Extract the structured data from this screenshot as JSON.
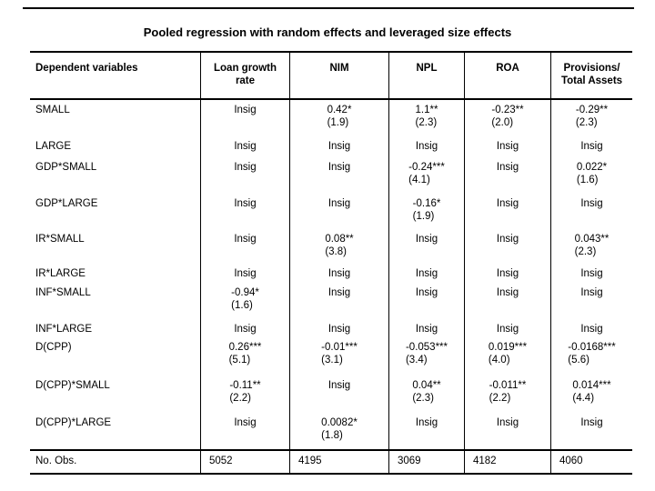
{
  "slide": {
    "title": "Pooled regression with random effects and leveraged size effects"
  },
  "table": {
    "headers": [
      "Dependent variables",
      "Loan growth rate",
      "NIM",
      "NPL",
      "ROA",
      "Provisions/ Total Assets"
    ],
    "rows": [
      {
        "label": "SMALL",
        "cells": [
          {
            "v": "Insig",
            "t": ""
          },
          {
            "v": "0.42*",
            "t": "(1.9)"
          },
          {
            "v": "1.1**",
            "t": "(2.3)"
          },
          {
            "v": "-0.23**",
            "t": "(2.0)"
          },
          {
            "v": "-0.29**",
            "t": "(2.3)"
          }
        ]
      },
      {
        "label": "LARGE",
        "cells": [
          {
            "v": "Insig",
            "t": ""
          },
          {
            "v": "Insig",
            "t": ""
          },
          {
            "v": "Insig",
            "t": ""
          },
          {
            "v": "Insig",
            "t": ""
          },
          {
            "v": "Insig",
            "t": ""
          }
        ]
      },
      {
        "label": "GDP*SMALL",
        "cells": [
          {
            "v": "Insig",
            "t": ""
          },
          {
            "v": "Insig",
            "t": ""
          },
          {
            "v": "-0.24***",
            "t": "(4.1)"
          },
          {
            "v": "Insig",
            "t": ""
          },
          {
            "v": "0.022*",
            "t": "(1.6)"
          }
        ]
      },
      {
        "label": "GDP*LARGE",
        "cells": [
          {
            "v": "Insig",
            "t": ""
          },
          {
            "v": "Insig",
            "t": ""
          },
          {
            "v": "-0.16*",
            "t": "(1.9)"
          },
          {
            "v": "Insig",
            "t": ""
          },
          {
            "v": "Insig",
            "t": ""
          }
        ]
      },
      {
        "label": "IR*SMALL",
        "cells": [
          {
            "v": "Insig",
            "t": ""
          },
          {
            "v": "0.08**",
            "t": "(3.8)"
          },
          {
            "v": "Insig",
            "t": ""
          },
          {
            "v": "Insig",
            "t": ""
          },
          {
            "v": "0.043**",
            "t": "(2.3)"
          }
        ]
      },
      {
        "label": "IR*LARGE",
        "cells": [
          {
            "v": "Insig",
            "t": ""
          },
          {
            "v": "Insig",
            "t": ""
          },
          {
            "v": "Insig",
            "t": ""
          },
          {
            "v": "Insig",
            "t": ""
          },
          {
            "v": "Insig",
            "t": ""
          }
        ]
      },
      {
        "label": "INF*SMALL",
        "cells": [
          {
            "v": "-0.94*",
            "t": "(1.6)"
          },
          {
            "v": "Insig",
            "t": ""
          },
          {
            "v": "Insig",
            "t": ""
          },
          {
            "v": "Insig",
            "t": ""
          },
          {
            "v": "Insig",
            "t": ""
          }
        ]
      },
      {
        "label": "INF*LARGE",
        "cells": [
          {
            "v": "Insig",
            "t": ""
          },
          {
            "v": "Insig",
            "t": ""
          },
          {
            "v": "Insig",
            "t": ""
          },
          {
            "v": "Insig",
            "t": ""
          },
          {
            "v": "Insig",
            "t": ""
          }
        ]
      },
      {
        "label": "D(CPP)",
        "cells": [
          {
            "v": "0.26***",
            "t": "(5.1)"
          },
          {
            "v": "-0.01***",
            "t": "(3.1)"
          },
          {
            "v": "-0.053***",
            "t": "(3.4)"
          },
          {
            "v": "0.019***",
            "t": "(4.0)"
          },
          {
            "v": "-0.0168***",
            "t": "(5.6)"
          }
        ]
      },
      {
        "label": "D(CPP)*SMALL",
        "cells": [
          {
            "v": "-0.11**",
            "t": "(2.2)"
          },
          {
            "v": "Insig",
            "t": ""
          },
          {
            "v": "0.04**",
            "t": "(2.3)"
          },
          {
            "v": "-0.011**",
            "t": "(2.2)"
          },
          {
            "v": "0.014***",
            "t": "(4.4)"
          }
        ]
      },
      {
        "label": "D(CPP)*LARGE",
        "cells": [
          {
            "v": "Insig",
            "t": ""
          },
          {
            "v": "0.0082*",
            "t": "(1.8)"
          },
          {
            "v": "Insig",
            "t": ""
          },
          {
            "v": "Insig",
            "t": ""
          },
          {
            "v": "Insig",
            "t": ""
          }
        ]
      },
      {
        "label": "No. Obs.",
        "obs": true,
        "cells": [
          {
            "v": "5052",
            "t": ""
          },
          {
            "v": "4195",
            "t": ""
          },
          {
            "v": "3069",
            "t": ""
          },
          {
            "v": "4182",
            "t": ""
          },
          {
            "v": "4060",
            "t": ""
          }
        ]
      }
    ]
  }
}
